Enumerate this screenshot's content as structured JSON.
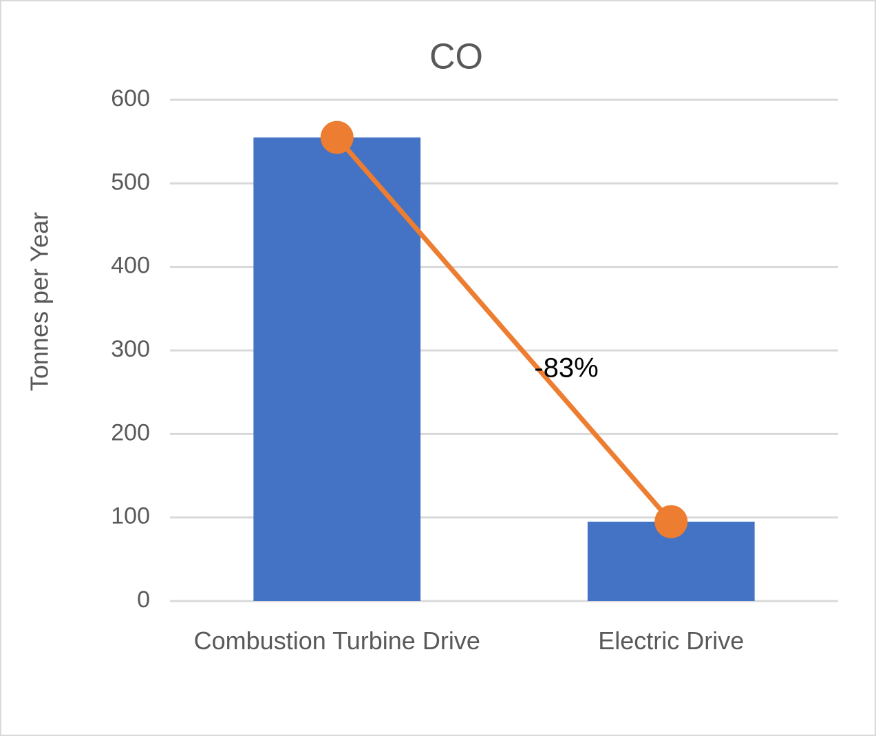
{
  "chart_data": {
    "type": "bar",
    "title": "CO",
    "y_label": "Tonnes per Year",
    "categories": [
      "Combustion Turbine Drive",
      "Electric Drive"
    ],
    "series": [
      {
        "type": "bar",
        "color": "#4472c4",
        "values": [
          555,
          95
        ]
      },
      {
        "type": "line",
        "color": "#ed7d31",
        "values": [
          555,
          95
        ]
      }
    ],
    "annotation": "-83%",
    "ylim": [
      0,
      600
    ],
    "yticks": [
      0,
      100,
      200,
      300,
      400,
      500,
      600
    ],
    "grid": true
  }
}
